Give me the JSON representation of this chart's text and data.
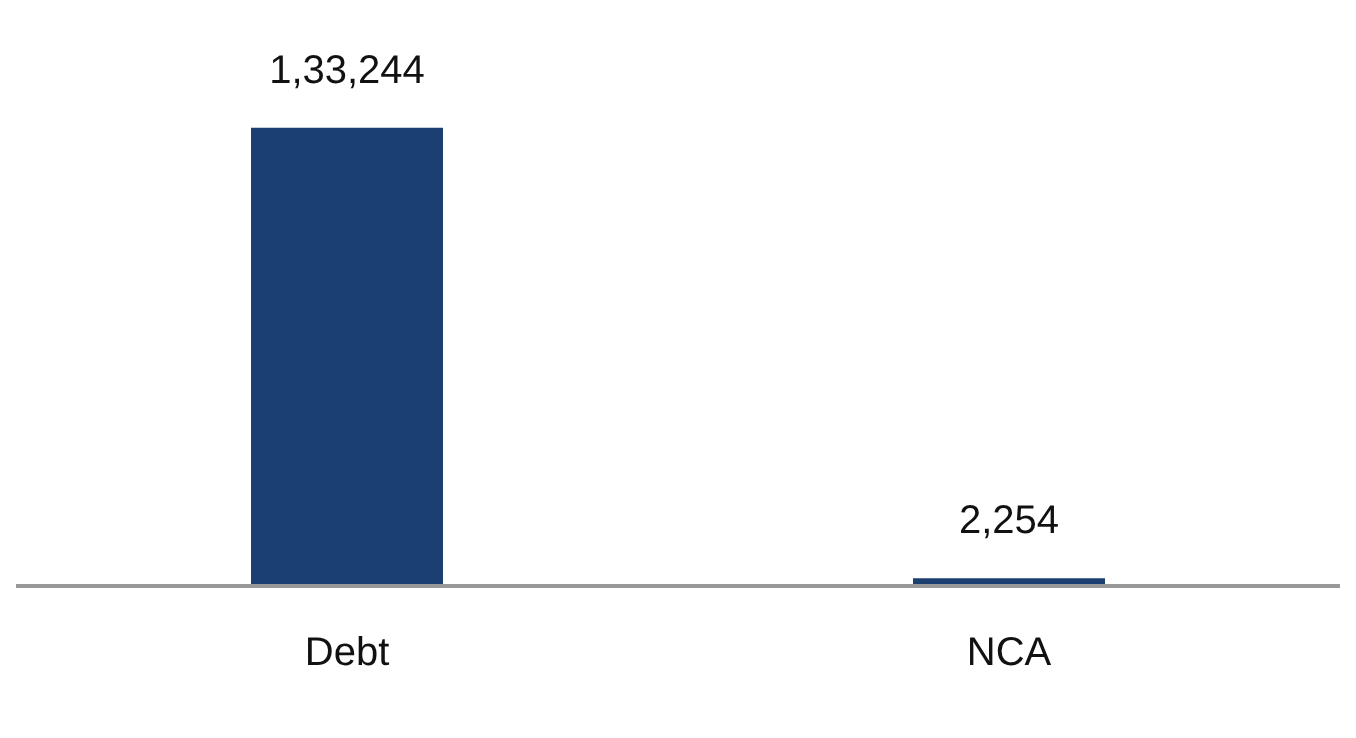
{
  "chart_data": {
    "type": "bar",
    "categories": [
      "Debt",
      "NCA"
    ],
    "values": [
      133244,
      2254
    ],
    "color": "#1b3f70",
    "value_labels": [
      "1,33,244",
      "2,254"
    ],
    "grid": false,
    "legend": false
  }
}
